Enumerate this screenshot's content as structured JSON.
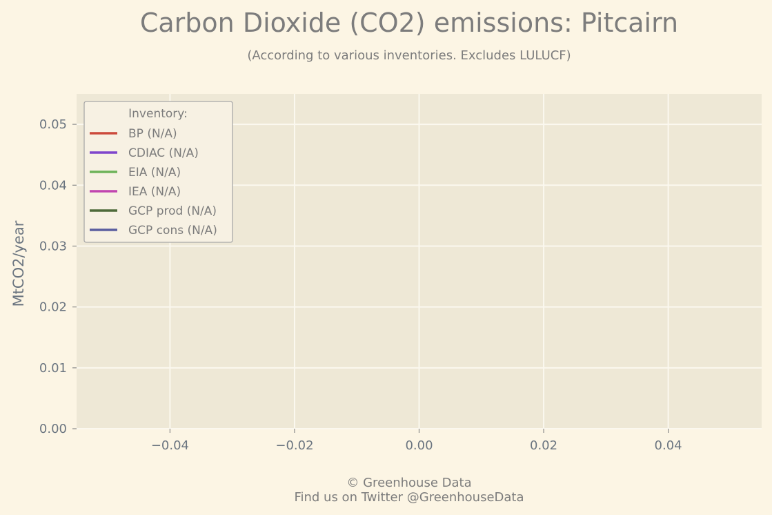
{
  "chart_data": {
    "type": "line",
    "title": "Carbon Dioxide (CO2) emissions: Pitcairn",
    "subtitle": "(According to various inventories. Excludes LULUCF)",
    "xlabel": "",
    "ylabel": "MtCO2/year",
    "xlim": [
      -0.055,
      0.055
    ],
    "ylim": [
      0,
      0.055
    ],
    "x_ticks": [
      -0.04,
      -0.02,
      0.0,
      0.02,
      0.04
    ],
    "x_tick_labels": [
      "−0.04",
      "−0.02",
      "0.00",
      "0.02",
      "0.04"
    ],
    "y_ticks": [
      0.0,
      0.01,
      0.02,
      0.03,
      0.04,
      0.05
    ],
    "y_tick_labels": [
      "0.00",
      "0.01",
      "0.02",
      "0.03",
      "0.04",
      "0.05"
    ],
    "grid": true,
    "legend": {
      "title": "Inventory:",
      "placement": "top-left",
      "entries": [
        {
          "name": "BP (N/A)",
          "color": "#cc4a3c"
        },
        {
          "name": "CDIAC (N/A)",
          "color": "#7f45cc"
        },
        {
          "name": "EIA (N/A)",
          "color": "#6db359"
        },
        {
          "name": "IEA (N/A)",
          "color": "#c145b0"
        },
        {
          "name": "GCP prod (N/A)",
          "color": "#4e6a3a"
        },
        {
          "name": "GCP cons (N/A)",
          "color": "#5a5e9f"
        }
      ]
    },
    "series": []
  },
  "footer": {
    "copyright": "© Greenhouse Data",
    "twitter": "Find us on Twitter @GreenhouseData"
  },
  "colors": {
    "background": "#fcf5e4",
    "plot_background": "#eee8d6",
    "grid": "#fbf8ef",
    "text": "#7c7c7c",
    "tick_text": "#6b7580"
  }
}
